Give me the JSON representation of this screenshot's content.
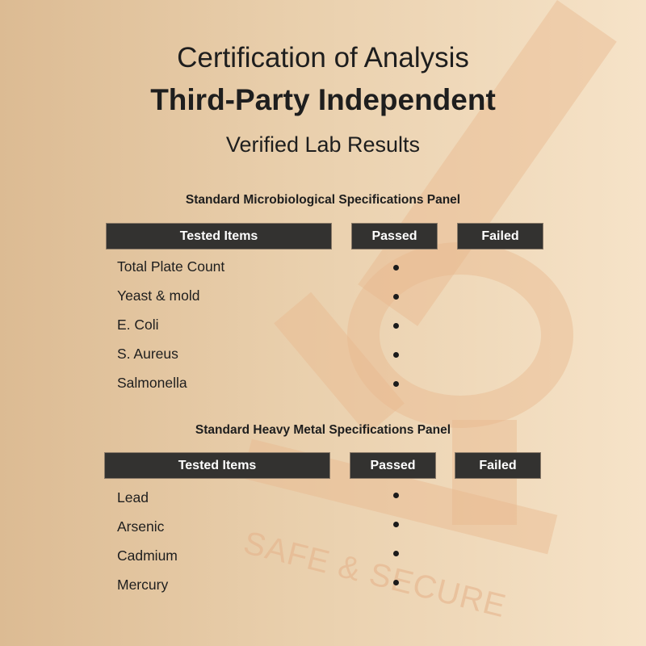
{
  "header": {
    "line1": "Certification of Analysis",
    "line2": "Third-Party Independent",
    "line3": "Verified Lab Results"
  },
  "watermark": {
    "text": "SAFE & SECURE",
    "icon": "microscope-icon"
  },
  "panels": [
    {
      "title": "Standard Microbiological Specifications Panel",
      "columns": [
        "Tested Items",
        "Passed",
        "Failed"
      ],
      "rows": [
        {
          "item": "Total Plate Count",
          "passed": true
        },
        {
          "item": "Yeast & mold",
          "passed": true
        },
        {
          "item": "E. Coli",
          "passed": true
        },
        {
          "item": "S. Aureus",
          "passed": true
        },
        {
          "item": "Salmonella",
          "passed": true
        }
      ]
    },
    {
      "title": "Standard Heavy Metal Specifications Panel",
      "columns": [
        "Tested Items",
        "Passed",
        "Failed"
      ],
      "rows": [
        {
          "item": "Lead",
          "passed": true
        },
        {
          "item": "Arsenic",
          "passed": true
        },
        {
          "item": "Cadmium",
          "passed": true
        },
        {
          "item": "Mercury",
          "passed": true
        }
      ]
    }
  ],
  "colors": {
    "header_bg": "#333230",
    "dot": "#1b1b1b",
    "background_left": "#dcbb93",
    "background_right": "#f6e3c8"
  }
}
